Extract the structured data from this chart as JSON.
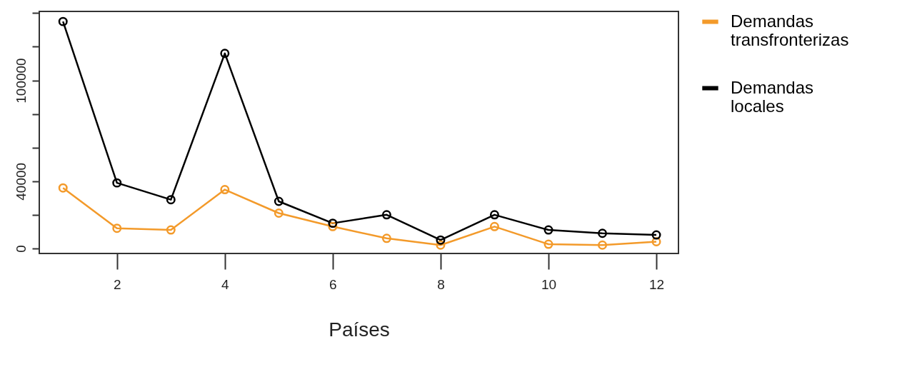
{
  "chart_data": {
    "type": "line",
    "xlabel": "Países",
    "x": [
      1,
      2,
      3,
      4,
      5,
      6,
      7,
      8,
      9,
      10,
      11,
      12
    ],
    "series": [
      {
        "name": "Demandas transfronterizas",
        "color": "#f39a2a",
        "values": [
          36000,
          12000,
          11000,
          35000,
          21000,
          13000,
          6000,
          2000,
          13000,
          2500,
          2000,
          4000
        ]
      },
      {
        "name": "Demandas locales",
        "color": "#000000",
        "values": [
          135000,
          39000,
          29000,
          116000,
          28000,
          15000,
          20000,
          5000,
          20000,
          11000,
          9000,
          8000
        ]
      }
    ],
    "xlim": [
      0.56,
      12.41
    ],
    "xticks": [
      2,
      4,
      6,
      8,
      10,
      12
    ],
    "ylim": [
      -3000,
      141000
    ],
    "yticks": [
      0,
      {
        "value": 20000,
        "label": null
      },
      40000,
      {
        "value": 60000,
        "label": null
      },
      {
        "value": 80000,
        "label": null
      },
      100000,
      {
        "value": 120000,
        "label": null
      },
      {
        "value": 140000,
        "label": null
      }
    ],
    "grid": false,
    "legend": "right",
    "marker": "circle",
    "line_style": "solid"
  }
}
